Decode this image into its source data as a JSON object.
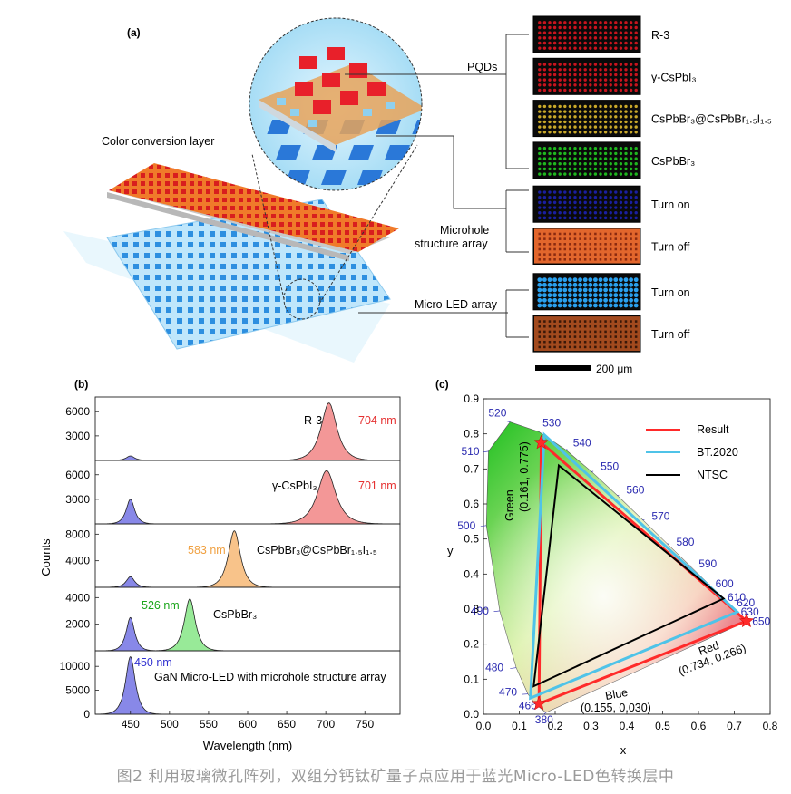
{
  "panel_a": {
    "label": "(a)",
    "color_conversion_label": "Color conversion layer",
    "micro_led_label": "Micro-LED array",
    "pqds_label": "PQDs",
    "microhole_label_1": "Microhole",
    "microhole_label_2": "structure array",
    "scale_bar_label": "200 μm",
    "images": [
      {
        "label": "R-3",
        "kind": "red"
      },
      {
        "label": "γ-CsPbI₃",
        "kind": "red"
      },
      {
        "label": "CsPbBr₃@CsPbBr₁.₅I₁.₅",
        "kind": "yellow"
      },
      {
        "label": "CsPbBr₃",
        "kind": "green"
      },
      {
        "label": "Turn on",
        "kind": "blue_dark"
      },
      {
        "label": "Turn off",
        "kind": "orange"
      },
      {
        "label": "Turn on",
        "kind": "blue_bright"
      },
      {
        "label": "Turn off",
        "kind": "brown"
      }
    ],
    "colors": {
      "red": "#c8141e",
      "yellow": "#c9a82a",
      "green": "#1fb71f",
      "blue_dark": "#1a1fa0",
      "orange": "#e2662c",
      "blue_bright": "#2aa0ee",
      "brown": "#a24a1e"
    }
  },
  "chart_data": [
    {
      "type": "line",
      "panel": "(b)",
      "xlabel": "Wavelength (nm)",
      "ylabel": "Counts",
      "xlim": [
        405,
        795
      ],
      "xticks": [
        450,
        500,
        550,
        600,
        650,
        700,
        750
      ],
      "series": [
        {
          "name": "R-3",
          "peak_label": "704 nm",
          "peak_label_color": "#e53030",
          "fill": "#f28c8c",
          "ylim": [
            0,
            7300
          ],
          "yticks": [
            3000,
            6000
          ],
          "peaks": [
            {
              "center": 450,
              "width": 7,
              "height": 550,
              "fill": "#7b7be6"
            },
            {
              "center": 704,
              "width": 13,
              "height": 7000,
              "fill": "#f28c8c"
            }
          ]
        },
        {
          "name": "γ-CsPbI₃",
          "peak_label": "701 nm",
          "peak_label_color": "#e53030",
          "fill": "#f28c8c",
          "ylim": [
            0,
            7300
          ],
          "yticks": [
            3000,
            6000
          ],
          "peaks": [
            {
              "center": 450,
              "width": 7,
              "height": 3000,
              "fill": "#7b7be6"
            },
            {
              "center": 701,
              "width": 15,
              "height": 6500,
              "fill": "#f28c8c"
            }
          ]
        },
        {
          "name": "CsPbBr₃@CsPbBr₁.₅I₁.₅",
          "peak_label": "583 nm",
          "peak_label_color": "#f0a040",
          "fill": "#f7bd7d",
          "ylim": [
            0,
            9000
          ],
          "yticks": [
            4000,
            8000
          ],
          "peaks": [
            {
              "center": 450,
              "width": 7,
              "height": 1600,
              "fill": "#7b7be6"
            },
            {
              "center": 583,
              "width": 10,
              "height": 8500,
              "fill": "#f7bd7d"
            }
          ]
        },
        {
          "name": "CsPbBr₃",
          "peak_label": "526 nm",
          "peak_label_color": "#1aa51a",
          "fill": "#8de88d",
          "ylim": [
            0,
            4500
          ],
          "yticks": [
            2000,
            4000
          ],
          "peaks": [
            {
              "center": 450,
              "width": 7,
              "height": 2500,
              "fill": "#7b7be6"
            },
            {
              "center": 526,
              "width": 9,
              "height": 3900,
              "fill": "#8de88d"
            }
          ]
        },
        {
          "name": "GaN Micro-LED with microhole structure array",
          "peak_label": "450 nm",
          "peak_label_color": "#3030d0",
          "fill": "#7b7be6",
          "ylim": [
            0,
            12500
          ],
          "yticks": [
            0,
            5000,
            10000
          ],
          "peaks": [
            {
              "center": 450,
              "width": 8,
              "height": 12000,
              "fill": "#7b7be6"
            }
          ]
        }
      ]
    },
    {
      "type": "scatter",
      "panel": "(c)",
      "xlabel": "x",
      "ylabel": "y",
      "xlim": [
        0.0,
        0.8
      ],
      "ylim": [
        0.0,
        0.9
      ],
      "xticks": [
        "0.0",
        "0.1",
        "0.2",
        "0.3",
        "0.4",
        "0.5",
        "0.6",
        "0.7",
        "0.8"
      ],
      "yticks": [
        "0.0",
        "0.1",
        "0.2",
        "0.3",
        "0.4",
        "0.5",
        "0.6",
        "0.7",
        "0.8",
        "0.9"
      ],
      "locus_labels": [
        "380",
        "460",
        "470",
        "480",
        "490",
        "500",
        "510",
        "520",
        "530",
        "540",
        "550",
        "560",
        "570",
        "580",
        "590",
        "600",
        "610",
        "620",
        "630",
        "650"
      ],
      "triangles": [
        {
          "name": "Result",
          "color": "#ff2a2a",
          "points": [
            [
              0.734,
              0.266
            ],
            [
              0.161,
              0.775
            ],
            [
              0.155,
              0.03
            ]
          ]
        },
        {
          "name": "BT.2020",
          "color": "#4fc3e8",
          "points": [
            [
              0.708,
              0.292
            ],
            [
              0.17,
              0.797
            ],
            [
              0.131,
              0.046
            ]
          ]
        },
        {
          "name": "NTSC",
          "color": "#000000",
          "points": [
            [
              0.67,
              0.33
            ],
            [
              0.21,
              0.71
            ],
            [
              0.14,
              0.08
            ]
          ]
        }
      ],
      "annotations": [
        {
          "name": "Green",
          "value": "(0.161, 0.775)"
        },
        {
          "name": "Red",
          "value": "(0.734, 0.266)"
        },
        {
          "name": "Blue",
          "value": "(0.155, 0.030)"
        }
      ]
    }
  ],
  "caption": "图2 利用玻璃微孔阵列，双组分钙钛矿量子点应用于蓝光Micro-LED色转换层中"
}
